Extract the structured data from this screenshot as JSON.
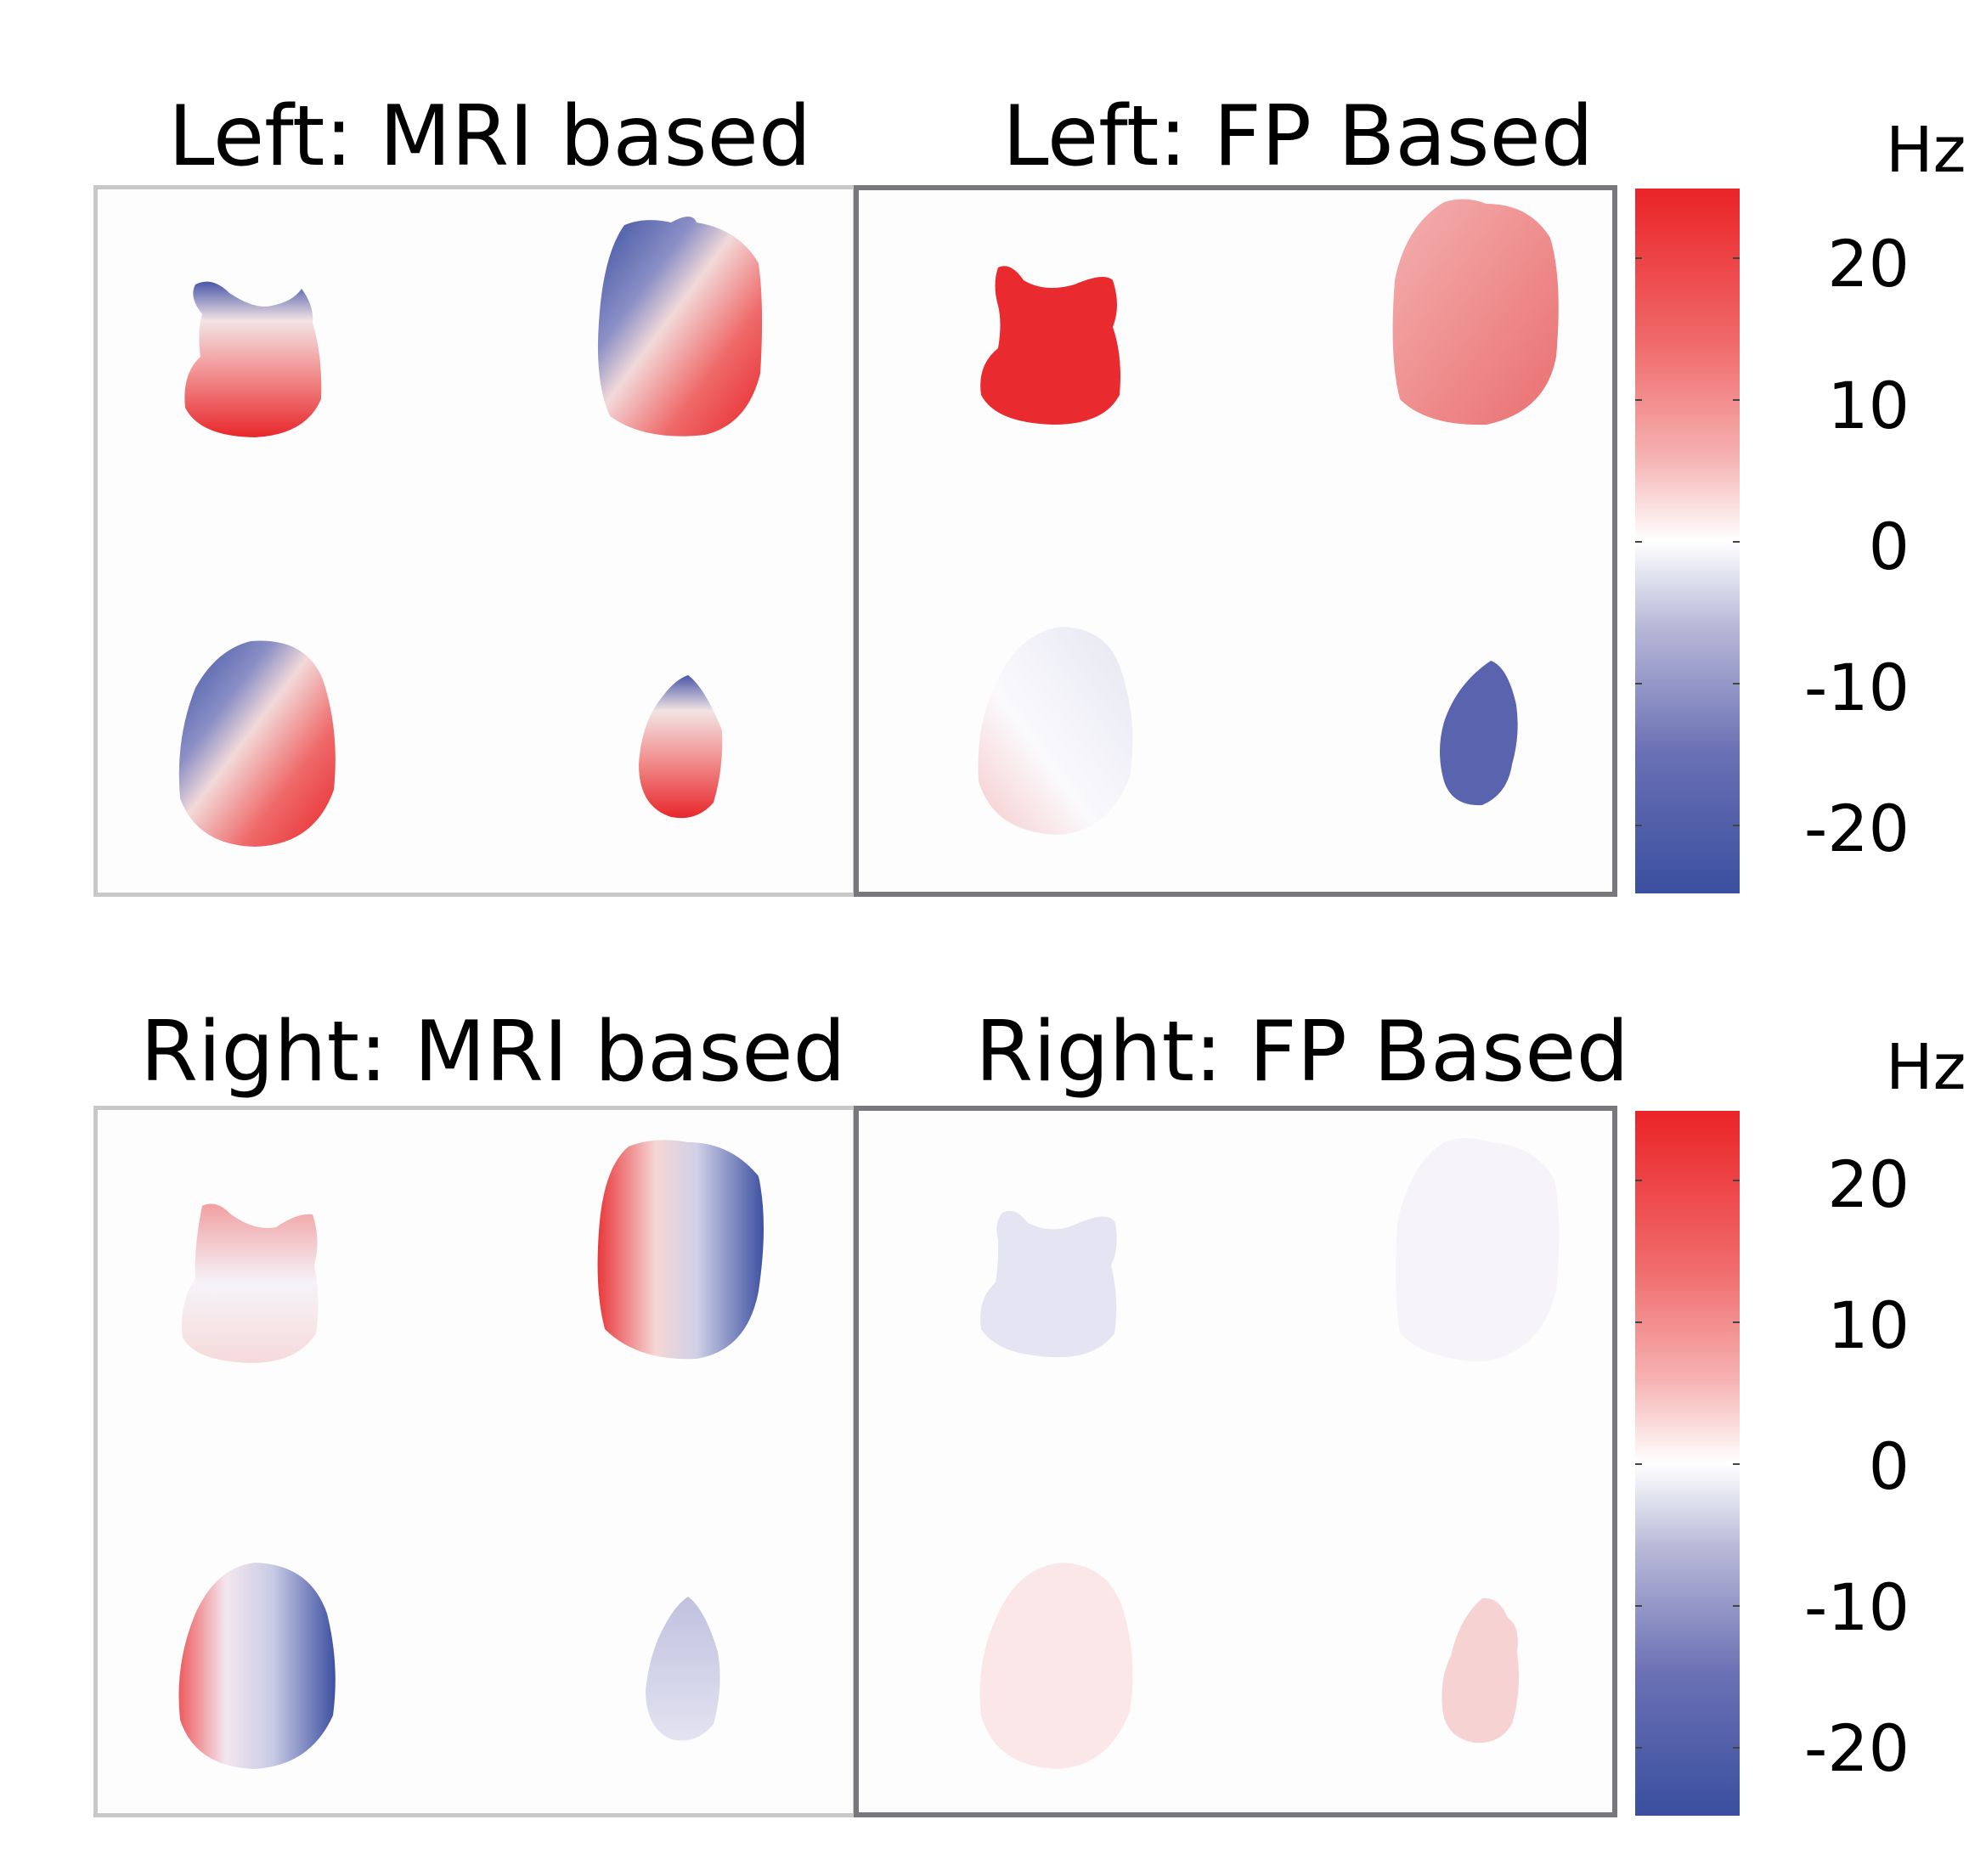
{
  "top": {
    "mri_title": "Left: MRI based",
    "fp_title": "Left: FP Based",
    "unit": "Hz",
    "ticks": [
      "20",
      "10",
      "0",
      "-10",
      "-20"
    ]
  },
  "bottom": {
    "mri_title": "Right: MRI based",
    "fp_title": "Right: FP Based",
    "unit": "Hz",
    "ticks": [
      "20",
      "10",
      "0",
      "-10",
      "-20"
    ]
  },
  "colors": {
    "red": "#ea2327",
    "white": "#ffffff",
    "blue": "#3a4f9f"
  },
  "colorbar_range": [
    -25,
    25
  ]
}
